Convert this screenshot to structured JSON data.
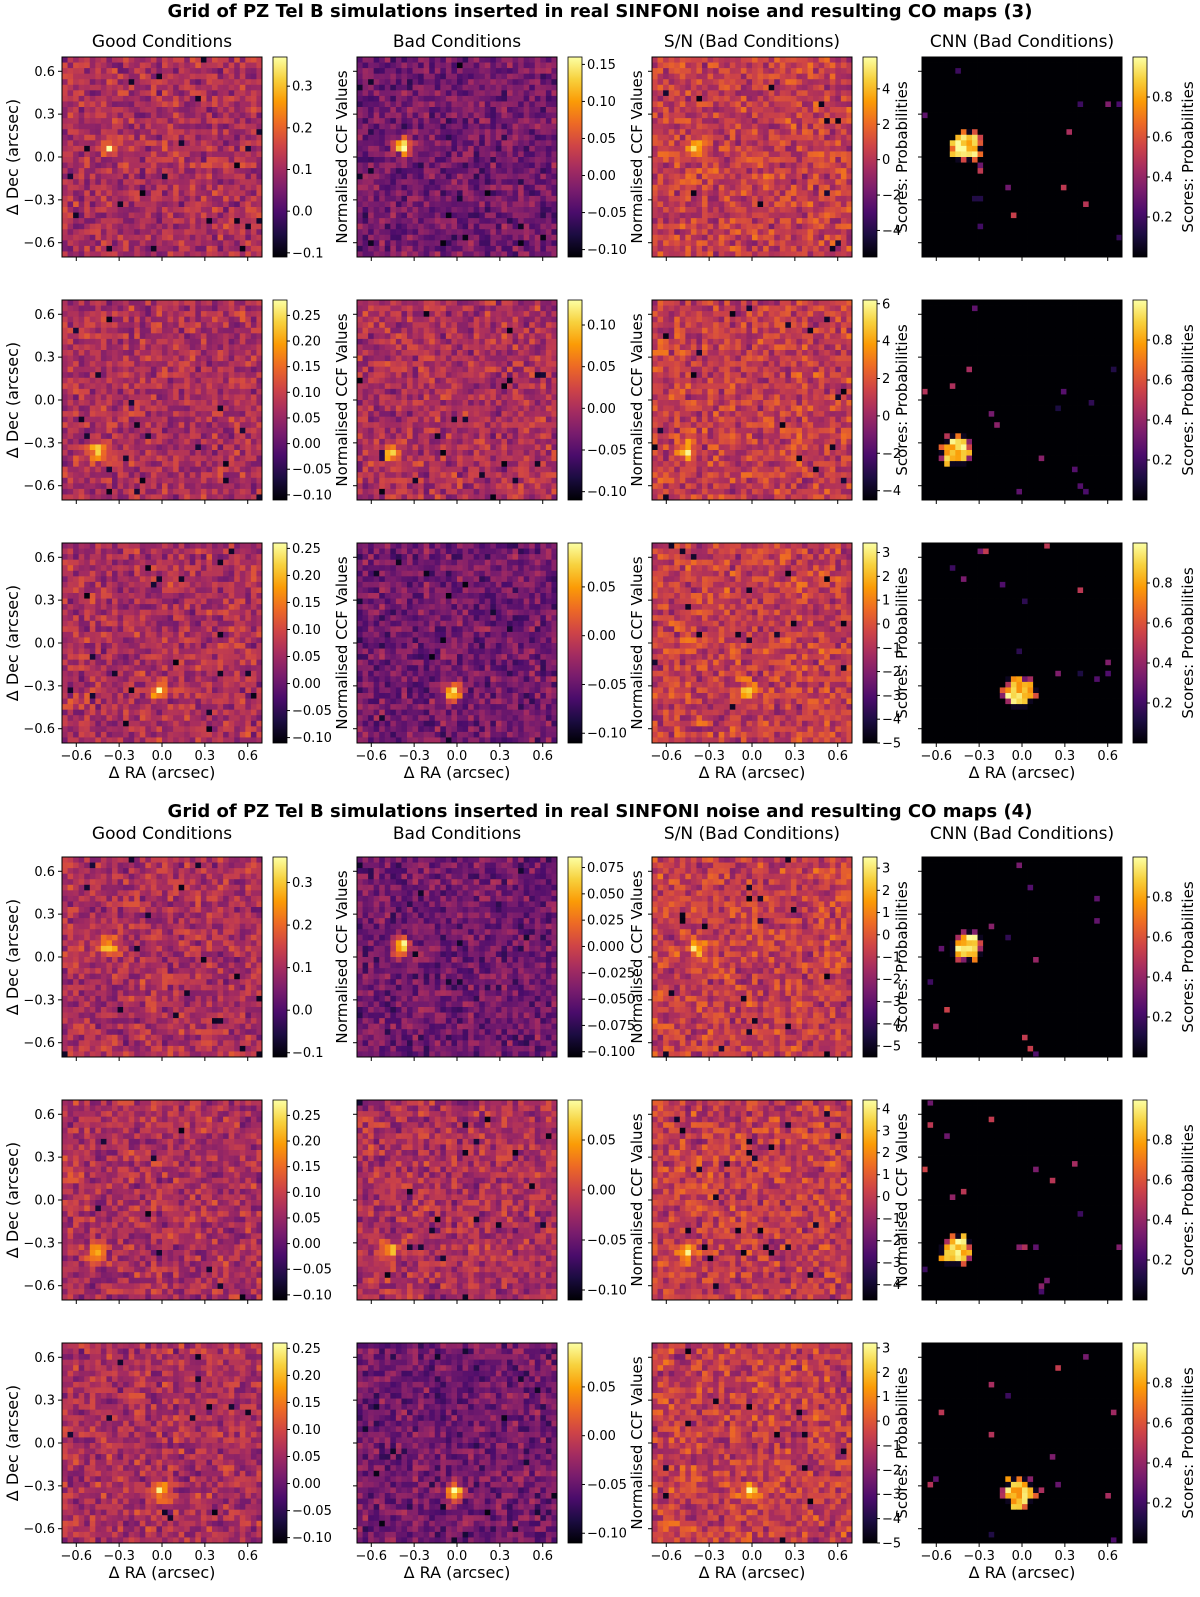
{
  "figure": {
    "columns": [
      "Good Conditions",
      "Bad Conditions",
      "S/N (Bad Conditions)",
      "CNN (Bad Conditions)"
    ],
    "colorbar_labels": [
      "",
      "Normalised CCF Values",
      "Normalised CCF Values",
      "Scores: Probabilities",
      "Scores: Probabilities"
    ],
    "x_axis_label": "Δ RA (arcsec)",
    "y_axis_label": "Δ Dec (arcsec)",
    "axis_ticks": [
      "−0.6",
      "−0.3",
      "0.0",
      "0.3",
      "0.6"
    ],
    "colormap": "inferno",
    "colormap_stops": [
      "#000004",
      "#1b0c41",
      "#4a0c6b",
      "#781c6d",
      "#a52c60",
      "#cf4446",
      "#ed6925",
      "#fb9b06",
      "#f7d13d",
      "#fcffa4"
    ]
  },
  "chart_data": [
    {
      "type": "heatmap",
      "title": "Grid of PZ Tel B simulations inserted in real SINFONI noise and resulting CO maps (3)",
      "xlabel": "Δ RA (arcsec)",
      "ylabel": "Δ Dec (arcsec)",
      "xlim": [
        -0.7,
        0.7
      ],
      "ylim": [
        -0.7,
        0.7
      ],
      "xticks": [
        -0.6,
        -0.3,
        0.0,
        0.3,
        0.6
      ],
      "yticks": [
        -0.6,
        -0.3,
        0.0,
        0.3,
        0.6
      ],
      "column_titles": [
        "Good Conditions",
        "Bad Conditions",
        "S/N (Bad Conditions)",
        "CNN (Bad Conditions)"
      ],
      "rows": [
        {
          "source_position": [
            -0.38,
            0.07
          ],
          "panels": [
            {
              "kind": "ccf",
              "colorbar_label": "Normalised CCF Values",
              "clim": [
                -0.11,
                0.37
              ],
              "cbar_ticks": [
                "−0.1",
                "0.0",
                "0.1",
                "0.2",
                "0.3"
              ],
              "cbar_values": [
                -0.1,
                0.0,
                0.1,
                0.2,
                0.3
              ]
            },
            {
              "kind": "ccf",
              "colorbar_label": "Normalised CCF Values",
              "clim": [
                -0.11,
                0.16
              ],
              "cbar_ticks": [
                "−0.10",
                "−0.05",
                "0.00",
                "0.05",
                "0.10",
                "0.15"
              ],
              "cbar_values": [
                -0.1,
                -0.05,
                0.0,
                0.05,
                0.1,
                0.15
              ]
            },
            {
              "kind": "snr",
              "colorbar_label": "Scores: Probabilities",
              "clim": [
                -5.5,
                5.8
              ],
              "cbar_ticks": [
                "−4",
                "−2",
                "0",
                "2",
                "4"
              ],
              "cbar_values": [
                -4,
                -2,
                0,
                2,
                4
              ]
            },
            {
              "kind": "cnn",
              "colorbar_label": "Scores: Probabilities",
              "clim": [
                0.0,
                1.0
              ],
              "cbar_ticks": [
                "0.2",
                "0.4",
                "0.6",
                "0.8"
              ],
              "cbar_values": [
                0.2,
                0.4,
                0.6,
                0.8
              ]
            }
          ]
        },
        {
          "source_position": [
            -0.46,
            -0.36
          ],
          "panels": [
            {
              "kind": "ccf",
              "colorbar_label": "Normalised CCF Values",
              "clim": [
                -0.11,
                0.28
              ],
              "cbar_ticks": [
                "−0.10",
                "−0.05",
                "0.00",
                "0.05",
                "0.10",
                "0.15",
                "0.20",
                "0.25"
              ],
              "cbar_values": [
                -0.1,
                -0.05,
                0.0,
                0.05,
                0.1,
                0.15,
                0.2,
                0.25
              ]
            },
            {
              "kind": "ccf",
              "colorbar_label": "Normalised CCF Values",
              "clim": [
                -0.11,
                0.13
              ],
              "cbar_ticks": [
                "−0.10",
                "−0.05",
                "0.00",
                "0.05",
                "0.10"
              ],
              "cbar_values": [
                -0.1,
                -0.05,
                0.0,
                0.05,
                0.1
              ]
            },
            {
              "kind": "snr",
              "colorbar_label": "Scores: Probabilities",
              "clim": [
                -4.5,
                6.2
              ],
              "cbar_ticks": [
                "−4",
                "−2",
                "0",
                "2",
                "4",
                "6"
              ],
              "cbar_values": [
                -4,
                -2,
                0,
                2,
                4,
                6
              ]
            },
            {
              "kind": "cnn",
              "colorbar_label": "Scores: Probabilities",
              "clim": [
                0.0,
                1.0
              ],
              "cbar_ticks": [
                "0.2",
                "0.4",
                "0.6",
                "0.8"
              ],
              "cbar_values": [
                0.2,
                0.4,
                0.6,
                0.8
              ]
            }
          ]
        },
        {
          "source_position": [
            -0.02,
            -0.34
          ],
          "panels": [
            {
              "kind": "ccf",
              "colorbar_label": "Normalised CCF Values",
              "clim": [
                -0.11,
                0.26
              ],
              "cbar_ticks": [
                "−0.10",
                "−0.05",
                "0.00",
                "0.05",
                "0.10",
                "0.15",
                "0.20",
                "0.25"
              ],
              "cbar_values": [
                -0.1,
                -0.05,
                0.0,
                0.05,
                0.1,
                0.15,
                0.2,
                0.25
              ]
            },
            {
              "kind": "ccf",
              "colorbar_label": "Normalised CCF Values",
              "clim": [
                -0.11,
                0.095
              ],
              "cbar_ticks": [
                "−0.10",
                "−0.05",
                "0.00",
                "0.05"
              ],
              "cbar_values": [
                -0.1,
                -0.05,
                0.0,
                0.05
              ]
            },
            {
              "kind": "snr",
              "colorbar_label": "Scores: Probabilities",
              "clim": [
                -5.0,
                3.4
              ],
              "cbar_ticks": [
                "−5",
                "−4",
                "−3",
                "−2",
                "−1",
                "0",
                "1",
                "2",
                "3"
              ],
              "cbar_values": [
                -5,
                -4,
                -3,
                -2,
                -1,
                0,
                1,
                2,
                3
              ]
            },
            {
              "kind": "cnn",
              "colorbar_label": "Scores: Probabilities",
              "clim": [
                0.0,
                1.0
              ],
              "cbar_ticks": [
                "0.2",
                "0.4",
                "0.6",
                "0.8"
              ],
              "cbar_values": [
                0.2,
                0.4,
                0.6,
                0.8
              ]
            }
          ]
        }
      ]
    },
    {
      "type": "heatmap",
      "title": "Grid of PZ Tel B simulations inserted in real SINFONI noise and resulting CO maps (4)",
      "xlabel": "Δ RA (arcsec)",
      "ylabel": "Δ Dec (arcsec)",
      "xlim": [
        -0.7,
        0.7
      ],
      "ylim": [
        -0.7,
        0.7
      ],
      "xticks": [
        -0.6,
        -0.3,
        0.0,
        0.3,
        0.6
      ],
      "yticks": [
        -0.6,
        -0.3,
        0.0,
        0.3,
        0.6
      ],
      "column_titles": [
        "Good Conditions",
        "Bad Conditions",
        "S/N (Bad Conditions)",
        "CNN (Bad Conditions)"
      ],
      "rows": [
        {
          "source_position": [
            -0.38,
            0.07
          ],
          "panels": [
            {
              "kind": "ccf",
              "colorbar_label": "Normalised CCF Values",
              "clim": [
                -0.11,
                0.36
              ],
              "cbar_ticks": [
                "−0.1",
                "0.0",
                "0.1",
                "0.2",
                "0.3"
              ],
              "cbar_values": [
                -0.1,
                0.0,
                0.1,
                0.2,
                0.3
              ]
            },
            {
              "kind": "ccf",
              "colorbar_label": "Normalised CCF Values",
              "clim": [
                -0.105,
                0.085
              ],
              "cbar_ticks": [
                "−0.100",
                "−0.075",
                "−0.050",
                "−0.025",
                "0.000",
                "0.025",
                "0.050",
                "0.075"
              ],
              "cbar_values": [
                -0.1,
                -0.075,
                -0.05,
                -0.025,
                0.0,
                0.025,
                0.05,
                0.075
              ]
            },
            {
              "kind": "snr",
              "colorbar_label": "Scores: Probabilities",
              "clim": [
                -5.5,
                3.5
              ],
              "cbar_ticks": [
                "−5",
                "−4",
                "−3",
                "−2",
                "−1",
                "0",
                "1",
                "2",
                "3"
              ],
              "cbar_values": [
                -5,
                -4,
                -3,
                -2,
                -1,
                0,
                1,
                2,
                3
              ]
            },
            {
              "kind": "cnn",
              "colorbar_label": "Scores: Probabilities",
              "clim": [
                0.0,
                1.0
              ],
              "cbar_ticks": [
                "0.2",
                "0.4",
                "0.6",
                "0.8"
              ],
              "cbar_values": [
                0.2,
                0.4,
                0.6,
                0.8
              ]
            }
          ]
        },
        {
          "source_position": [
            -0.46,
            -0.36
          ],
          "panels": [
            {
              "kind": "ccf",
              "colorbar_label": "",
              "clim": [
                -0.11,
                0.28
              ],
              "cbar_ticks": [
                "−0.10",
                "−0.05",
                "0.00",
                "0.05",
                "0.10",
                "0.15",
                "0.20",
                "0.25"
              ],
              "cbar_values": [
                -0.1,
                -0.05,
                0.0,
                0.05,
                0.1,
                0.15,
                0.2,
                0.25
              ]
            },
            {
              "kind": "ccf",
              "colorbar_label": "Normalised CCF Values",
              "clim": [
                -0.11,
                0.09
              ],
              "cbar_ticks": [
                "−0.10",
                "−0.05",
                "0.00",
                "0.05"
              ],
              "cbar_values": [
                -0.1,
                -0.05,
                0.0,
                0.05
              ]
            },
            {
              "kind": "snr",
              "colorbar_label": "Normalised CCF Values",
              "clim": [
                -4.7,
                4.4
              ],
              "cbar_ticks": [
                "−4",
                "−3",
                "−2",
                "−1",
                "0",
                "1",
                "2",
                "3",
                "4"
              ],
              "cbar_values": [
                -4,
                -3,
                -2,
                -1,
                0,
                1,
                2,
                3,
                4
              ]
            },
            {
              "kind": "cnn",
              "colorbar_label": "Scores: Probabilities",
              "clim": [
                0.0,
                1.0
              ],
              "cbar_ticks": [
                "0.2",
                "0.4",
                "0.6",
                "0.8"
              ],
              "cbar_values": [
                0.2,
                0.4,
                0.6,
                0.8
              ]
            }
          ]
        },
        {
          "source_position": [
            -0.02,
            -0.34
          ],
          "panels": [
            {
              "kind": "ccf",
              "colorbar_label": "",
              "clim": [
                -0.11,
                0.26
              ],
              "cbar_ticks": [
                "−0.10",
                "−0.05",
                "0.00",
                "0.05",
                "0.10",
                "0.15",
                "0.20",
                "0.25"
              ],
              "cbar_values": [
                -0.1,
                -0.05,
                0.0,
                0.05,
                0.1,
                0.15,
                0.2,
                0.25
              ]
            },
            {
              "kind": "ccf",
              "colorbar_label": "Normalised CCF Values",
              "clim": [
                -0.11,
                0.095
              ],
              "cbar_ticks": [
                "−0.10",
                "−0.05",
                "0.00",
                "0.05"
              ],
              "cbar_values": [
                -0.1,
                -0.05,
                0.0,
                0.05
              ]
            },
            {
              "kind": "snr",
              "colorbar_label": "Scores: Probabilities",
              "clim": [
                -5.0,
                3.2
              ],
              "cbar_ticks": [
                "−5",
                "−4",
                "−3",
                "−2",
                "−1",
                "0",
                "1",
                "2",
                "3"
              ],
              "cbar_values": [
                -5,
                -4,
                -3,
                -2,
                -1,
                0,
                1,
                2,
                3
              ]
            },
            {
              "kind": "cnn",
              "colorbar_label": "Scores: Probabilities",
              "clim": [
                0.0,
                1.0
              ],
              "cbar_ticks": [
                "0.2",
                "0.4",
                "0.6",
                "0.8"
              ],
              "cbar_values": [
                0.2,
                0.4,
                0.6,
                0.8
              ]
            }
          ]
        }
      ]
    }
  ]
}
